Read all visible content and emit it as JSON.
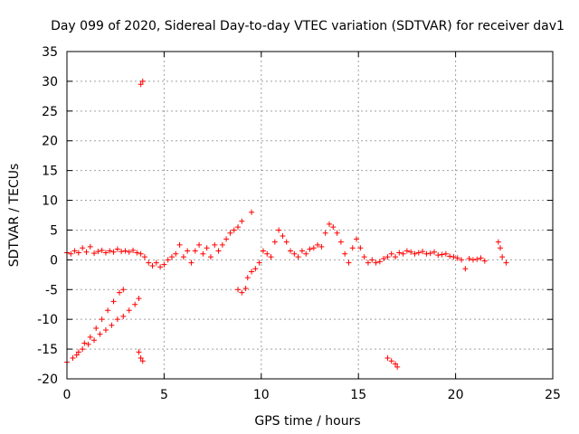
{
  "chart_data": {
    "type": "scatter",
    "title": "Day 099 of 2020, Sidereal Day-to-day VTEC variation (SDTVAR) for receiver dav1",
    "xlabel": "GPS time / hours",
    "ylabel": "SDTVAR / TECUs",
    "xlim": [
      0,
      25
    ],
    "ylim": [
      -20,
      35
    ],
    "xticks": [
      0,
      5,
      10,
      15,
      20,
      25
    ],
    "yticks": [
      -20,
      -15,
      -10,
      -5,
      0,
      5,
      10,
      15,
      20,
      25,
      30,
      35
    ],
    "marker": "plus",
    "grid": true,
    "series": [
      {
        "name": "SDTVAR",
        "color": "#ff0000",
        "points": [
          [
            0.0,
            1.2
          ],
          [
            0.2,
            1.0
          ],
          [
            0.4,
            1.5
          ],
          [
            0.6,
            1.2
          ],
          [
            0.8,
            2.0
          ],
          [
            1.0,
            1.3
          ],
          [
            1.2,
            2.2
          ],
          [
            1.4,
            1.1
          ],
          [
            1.6,
            1.4
          ],
          [
            1.8,
            1.6
          ],
          [
            2.0,
            1.2
          ],
          [
            2.2,
            1.5
          ],
          [
            2.4,
            1.3
          ],
          [
            2.6,
            1.8
          ],
          [
            2.8,
            1.4
          ],
          [
            3.0,
            1.5
          ],
          [
            3.2,
            1.3
          ],
          [
            3.4,
            1.6
          ],
          [
            3.6,
            1.2
          ],
          [
            3.8,
            1.0
          ],
          [
            4.0,
            0.5
          ],
          [
            4.2,
            -0.5
          ],
          [
            4.4,
            -1.0
          ],
          [
            4.6,
            -0.5
          ],
          [
            4.8,
            -1.2
          ],
          [
            5.0,
            -0.8
          ],
          [
            5.2,
            0.0
          ],
          [
            5.4,
            0.5
          ],
          [
            5.6,
            1.0
          ],
          [
            5.8,
            2.5
          ],
          [
            6.0,
            0.5
          ],
          [
            6.2,
            1.5
          ],
          [
            6.4,
            -0.5
          ],
          [
            6.6,
            1.5
          ],
          [
            6.8,
            2.5
          ],
          [
            7.0,
            1.0
          ],
          [
            7.2,
            2.0
          ],
          [
            7.4,
            0.5
          ],
          [
            7.6,
            2.5
          ],
          [
            7.8,
            1.5
          ],
          [
            8.0,
            2.5
          ],
          [
            8.2,
            3.5
          ],
          [
            8.4,
            4.5
          ],
          [
            8.6,
            5.0
          ],
          [
            8.8,
            5.5
          ],
          [
            9.0,
            6.5
          ],
          [
            9.5,
            8.0
          ],
          [
            8.8,
            -5.0
          ],
          [
            9.0,
            -5.5
          ],
          [
            9.2,
            -4.8
          ],
          [
            9.3,
            -3.0
          ],
          [
            9.5,
            -2.0
          ],
          [
            9.7,
            -1.5
          ],
          [
            9.9,
            -0.5
          ],
          [
            10.1,
            1.5
          ],
          [
            10.3,
            1.0
          ],
          [
            10.5,
            0.5
          ],
          [
            10.7,
            3.0
          ],
          [
            10.9,
            5.0
          ],
          [
            11.1,
            4.0
          ],
          [
            11.3,
            3.0
          ],
          [
            11.5,
            1.5
          ],
          [
            11.7,
            1.0
          ],
          [
            11.9,
            0.5
          ],
          [
            12.1,
            1.5
          ],
          [
            12.3,
            1.0
          ],
          [
            12.5,
            1.8
          ],
          [
            12.7,
            2.0
          ],
          [
            12.9,
            2.5
          ],
          [
            13.1,
            2.2
          ],
          [
            13.3,
            4.5
          ],
          [
            13.5,
            6.0
          ],
          [
            13.7,
            5.5
          ],
          [
            13.9,
            4.5
          ],
          [
            14.1,
            3.0
          ],
          [
            14.3,
            1.0
          ],
          [
            14.5,
            -0.5
          ],
          [
            14.7,
            2.0
          ],
          [
            14.9,
            3.5
          ],
          [
            15.1,
            2.0
          ],
          [
            15.3,
            0.5
          ],
          [
            15.5,
            -0.5
          ],
          [
            15.7,
            0.0
          ],
          [
            15.9,
            -0.5
          ],
          [
            16.1,
            -0.3
          ],
          [
            16.3,
            0.2
          ],
          [
            16.5,
            0.5
          ],
          [
            16.7,
            1.0
          ],
          [
            16.9,
            0.5
          ],
          [
            17.1,
            1.2
          ],
          [
            17.3,
            1.0
          ],
          [
            17.5,
            1.5
          ],
          [
            17.7,
            1.3
          ],
          [
            17.9,
            1.0
          ],
          [
            18.1,
            1.2
          ],
          [
            18.3,
            1.4
          ],
          [
            18.5,
            1.0
          ],
          [
            18.7,
            1.1
          ],
          [
            18.9,
            1.3
          ],
          [
            19.1,
            0.8
          ],
          [
            19.3,
            0.9
          ],
          [
            19.5,
            1.0
          ],
          [
            19.7,
            0.6
          ],
          [
            19.9,
            0.5
          ],
          [
            20.1,
            0.3
          ],
          [
            20.3,
            0.0
          ],
          [
            20.5,
            -1.5
          ],
          [
            20.7,
            0.2
          ],
          [
            20.9,
            0.0
          ],
          [
            21.1,
            0.1
          ],
          [
            21.3,
            0.3
          ],
          [
            21.5,
            -0.2
          ],
          [
            22.2,
            3.0
          ],
          [
            22.3,
            2.0
          ],
          [
            22.4,
            0.5
          ],
          [
            22.6,
            -0.5
          ],
          [
            0.0,
            -17.2
          ],
          [
            0.3,
            -16.5
          ],
          [
            0.6,
            -15.5
          ],
          [
            0.9,
            -14.0
          ],
          [
            1.2,
            -13.0
          ],
          [
            1.5,
            -11.5
          ],
          [
            1.8,
            -10.0
          ],
          [
            2.1,
            -8.5
          ],
          [
            2.4,
            -7.0
          ],
          [
            2.7,
            -5.5
          ],
          [
            2.9,
            -5.0
          ],
          [
            0.5,
            -16.0
          ],
          [
            0.8,
            -15.0
          ],
          [
            1.1,
            -14.2
          ],
          [
            1.4,
            -13.5
          ],
          [
            1.7,
            -12.5
          ],
          [
            2.0,
            -11.8
          ],
          [
            2.3,
            -11.0
          ],
          [
            2.6,
            -10.0
          ],
          [
            2.9,
            -9.5
          ],
          [
            3.2,
            -8.5
          ],
          [
            3.5,
            -7.5
          ],
          [
            3.7,
            -6.5
          ],
          [
            3.7,
            -15.5
          ],
          [
            3.8,
            -16.5
          ],
          [
            3.9,
            -17.0
          ],
          [
            3.8,
            29.5
          ],
          [
            3.9,
            30.0
          ],
          [
            16.5,
            -16.5
          ],
          [
            16.7,
            -17.0
          ],
          [
            16.9,
            -17.5
          ],
          [
            17.0,
            -18.0
          ]
        ]
      }
    ]
  }
}
